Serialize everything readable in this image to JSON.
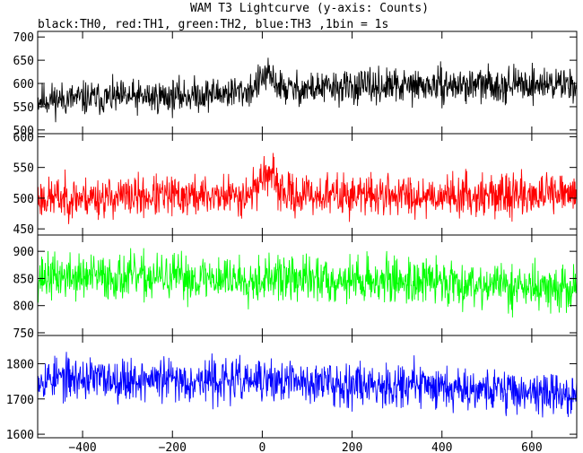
{
  "chart_data": {
    "type": "line",
    "title": "WAM T3 Lightcurve (y-axis: Counts)",
    "subtitle": "black:TH0, red:TH1, green:TH2, blue:TH3 ,1bin = 1s",
    "xlabel": "",
    "ylabel": "",
    "x_range": [
      -500,
      700
    ],
    "x_step": 1,
    "x_ticks": [
      -400,
      -200,
      0,
      200,
      400,
      600
    ],
    "x_tick_labels": [
      "−400",
      "−200",
      "0",
      "200",
      "400",
      "600"
    ],
    "grid": false,
    "legend": "subtitle",
    "panels": [
      {
        "name": "TH0",
        "color": "#000000",
        "ylim": [
          492,
          712
        ],
        "y_ticks": [
          500,
          550,
          600,
          650,
          700
        ],
        "y_tick_labels": [
          "500",
          "550",
          "600",
          "650",
          "700"
        ],
        "trend": [
          [
            -500,
            565
          ],
          [
            -200,
            572
          ],
          [
            0,
            585
          ],
          [
            200,
            592
          ],
          [
            700,
            600
          ]
        ],
        "noise": 24,
        "bump": {
          "center": 10,
          "width": 25,
          "height": 30
        },
        "seed": 11
      },
      {
        "name": "TH1",
        "color": "#ff0000",
        "ylim": [
          440,
          605
        ],
        "y_ticks": [
          450,
          500,
          550,
          600
        ],
        "y_tick_labels": [
          "450",
          "500",
          "550",
          "600"
        ],
        "trend": [
          [
            -500,
            500
          ],
          [
            0,
            505
          ],
          [
            700,
            505
          ]
        ],
        "noise": 22,
        "bump": {
          "center": 10,
          "width": 25,
          "height": 35
        },
        "seed": 23
      },
      {
        "name": "TH2",
        "color": "#00ff00",
        "ylim": [
          745,
          930
        ],
        "y_ticks": [
          750,
          800,
          850,
          900
        ],
        "y_tick_labels": [
          "750",
          "800",
          "850",
          "900"
        ],
        "trend": [
          [
            -500,
            853
          ],
          [
            0,
            850
          ],
          [
            400,
            845
          ],
          [
            700,
            828
          ]
        ],
        "noise": 28,
        "bump": {
          "center": 0,
          "width": 1,
          "height": 0
        },
        "seed": 37
      },
      {
        "name": "TH3",
        "color": "#0000ff",
        "ylim": [
          1590,
          1880
        ],
        "y_ticks": [
          1600,
          1700,
          1800
        ],
        "y_tick_labels": [
          "1600",
          "1700",
          "1800"
        ],
        "trend": [
          [
            -500,
            1760
          ],
          [
            0,
            1750
          ],
          [
            400,
            1738
          ],
          [
            700,
            1710
          ]
        ],
        "noise": 40,
        "bump": {
          "center": 0,
          "width": 1,
          "height": 0
        },
        "seed": 53
      }
    ]
  }
}
